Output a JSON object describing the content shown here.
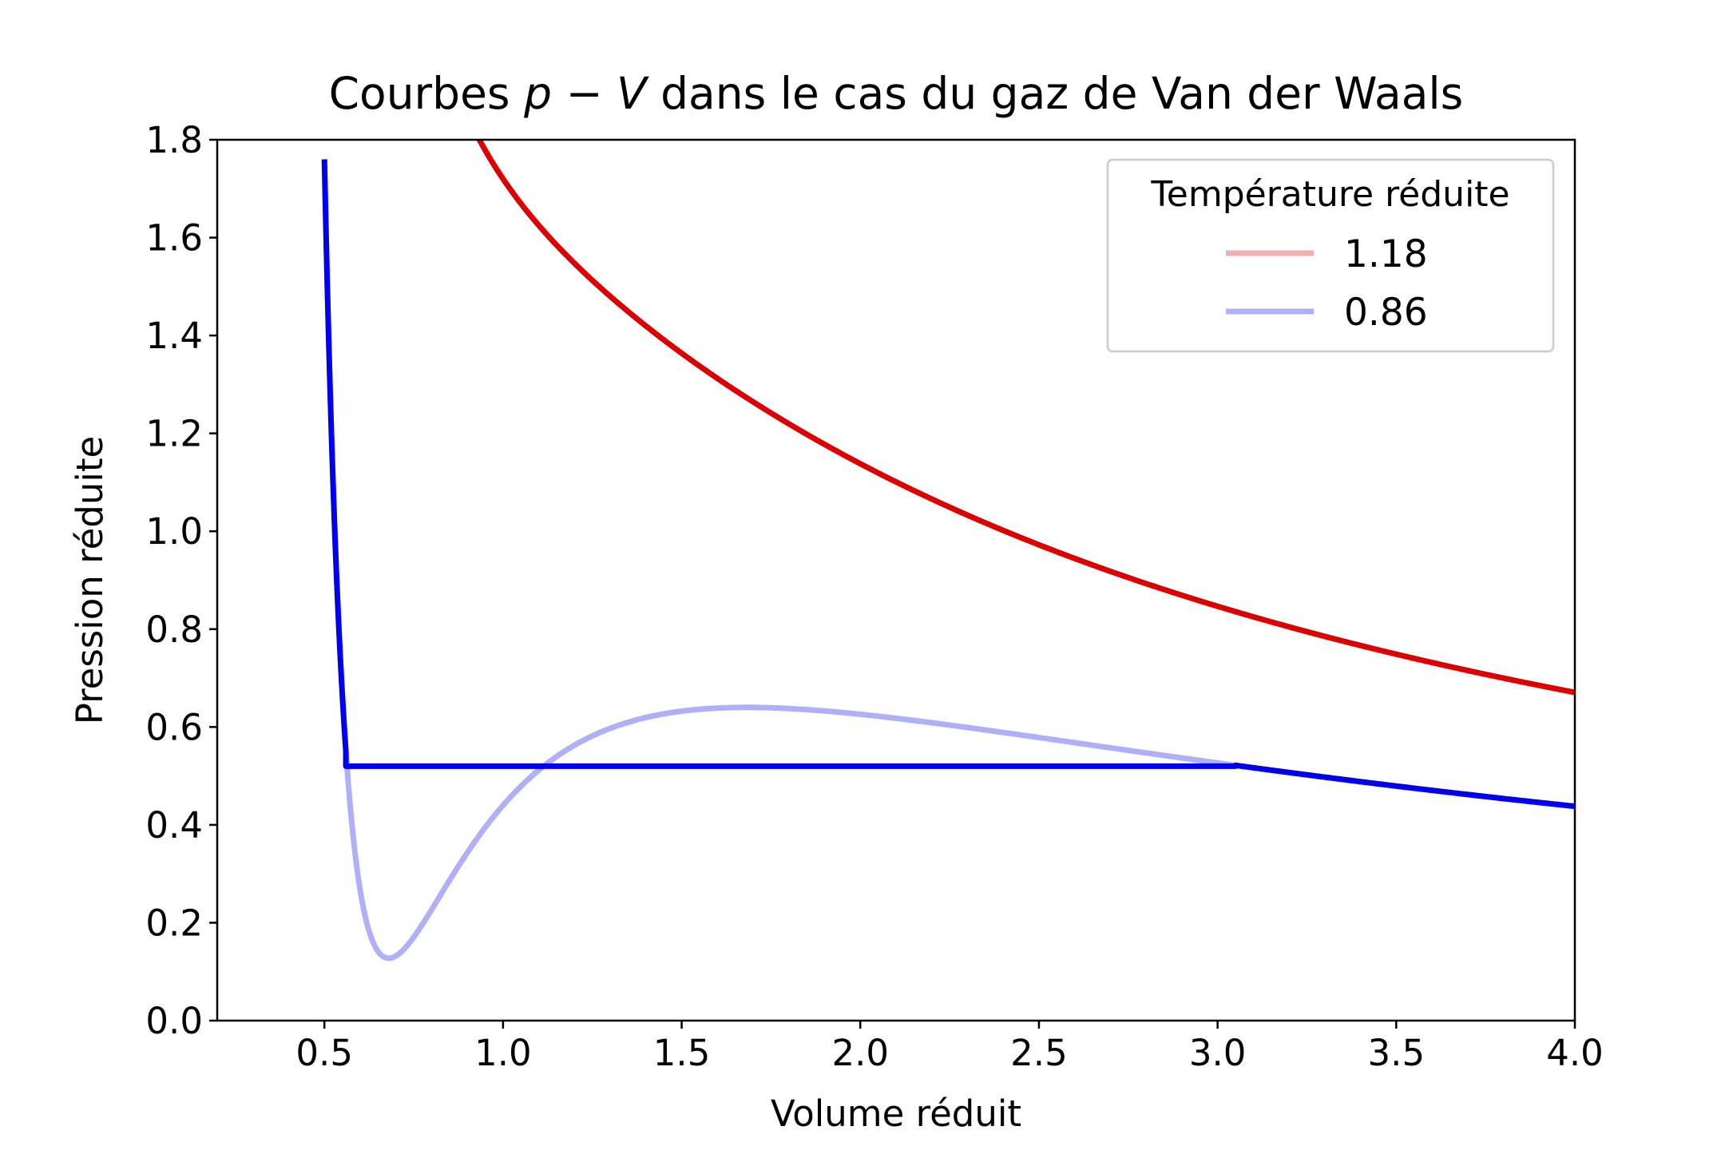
{
  "chart_data": {
    "type": "line",
    "title": {
      "prefix": "Courbes ",
      "math": "p − V",
      "suffix": " dans le cas du gaz de Van der Waals"
    },
    "xlabel": "Volume réduit",
    "ylabel": "Pression réduite",
    "xlim": [
      0.2,
      4.0
    ],
    "ylim": [
      0.0,
      1.8
    ],
    "xticks": [
      "0.5",
      "1.0",
      "1.5",
      "2.0",
      "2.5",
      "3.0",
      "3.5",
      "4.0"
    ],
    "yticks": [
      "0.0",
      "0.2",
      "0.4",
      "0.6",
      "0.8",
      "1.0",
      "1.2",
      "1.4",
      "1.6",
      "1.8"
    ],
    "grid": false,
    "legend": {
      "title": "Température réduite",
      "position": "top-right",
      "entries": [
        {
          "label": "1.18",
          "color": "#f0b0b0"
        },
        {
          "label": "0.86",
          "color": "#b0b0f8"
        }
      ]
    },
    "series": [
      {
        "name": "1.18",
        "kind": "van_der_waals_isotherm",
        "temperature": 1.18,
        "color": "#dd0000",
        "v_range": [
          0.5,
          4.0
        ]
      },
      {
        "name": "0.86",
        "kind": "van_der_waals_isotherm",
        "temperature": 0.86,
        "color": "#b0b0f8",
        "v_range": [
          0.5,
          4.0
        ]
      },
      {
        "name": "0.86",
        "kind": "maxwell_construction",
        "temperature": 0.86,
        "plateau_pressure": 0.52,
        "plateau_v_range": [
          0.56,
          3.05
        ],
        "color": "#0000ee",
        "v_range": [
          0.5,
          4.0
        ]
      }
    ]
  }
}
